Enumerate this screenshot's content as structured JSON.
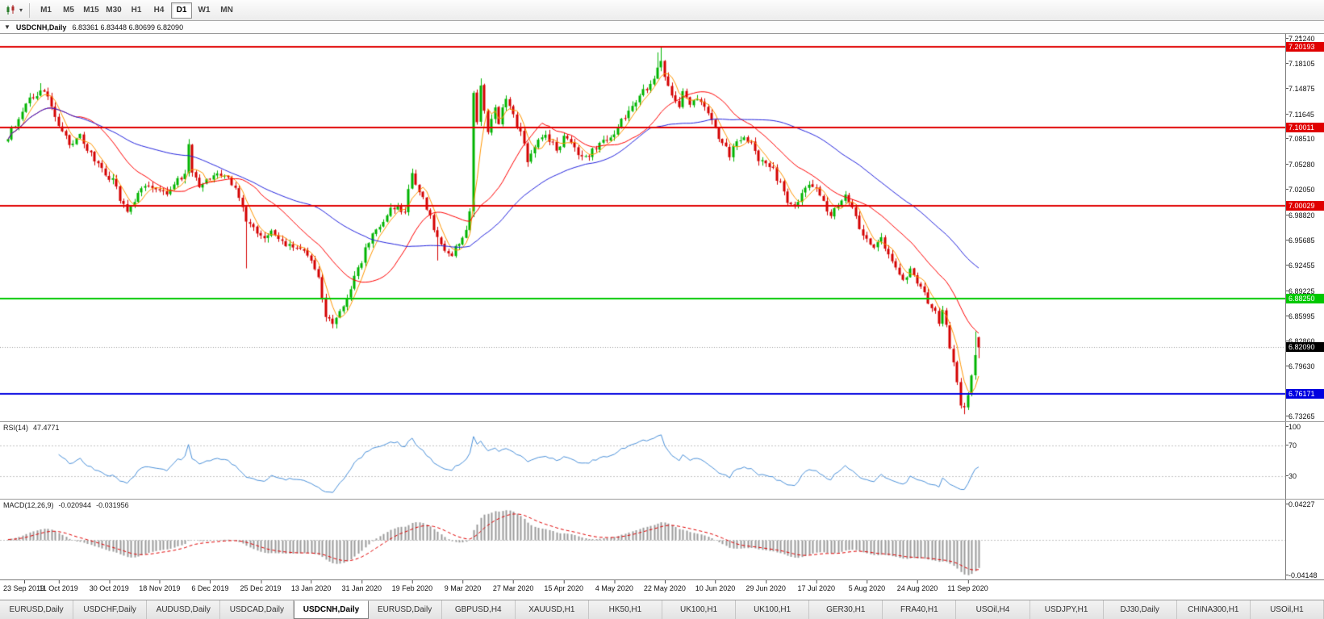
{
  "toolbar": {
    "chart_type_icon": "candlestick-chart-icon",
    "dropdown_icon": "caret-down",
    "timeframes": [
      "M1",
      "M5",
      "M15",
      "M30",
      "H1",
      "H4",
      "D1",
      "W1",
      "MN"
    ],
    "active_timeframe": "D1"
  },
  "chart_header": {
    "collapse_icon": "triangle-down",
    "symbol": "USDCNH,Daily",
    "ohlc": "6.83361 6.83448 6.80699 6.82090"
  },
  "tabs": {
    "items": [
      "EURUSD,Daily",
      "USDCHF,Daily",
      "AUDUSD,Daily",
      "USDCAD,Daily",
      "USDCNH,Daily",
      "EURUSD,Daily",
      "GBPUSD,H4",
      "XAUUSD,H1",
      "HK50,H1",
      "UK100,H1",
      "UK100,H1",
      "GER30,H1",
      "FRA40,H1",
      "USOil,H4",
      "USDJPY,H1",
      "DJ30,Daily",
      "CHINA300,H1",
      "USOil,H1"
    ],
    "active_index": 4
  },
  "chart_data": {
    "type": "candlestick",
    "title": "USDCNH,Daily",
    "ohlc_display": {
      "open": "6.83361",
      "high": "6.83448",
      "low": "6.80699",
      "close": "6.82090"
    },
    "y_axis": {
      "range": [
        6.727,
        7.2185
      ],
      "ticks": [
        "7.21240",
        "7.18105",
        "7.14875",
        "7.11645",
        "7.08510",
        "7.05280",
        "7.02050",
        "6.98820",
        "6.95685",
        "6.92455",
        "6.89225",
        "6.85995",
        "6.82860",
        "6.79630",
        "6.73265"
      ]
    },
    "x_axis": {
      "labels": [
        "23 Sep 2019",
        "11 Oct 2019",
        "30 Oct 2019",
        "18 Nov 2019",
        "6 Dec 2019",
        "25 Dec 2019",
        "13 Jan 2020",
        "31 Jan 2020",
        "19 Feb 2020",
        "9 Mar 2020",
        "27 Mar 2020",
        "15 Apr 2020",
        "4 May 2020",
        "22 May 2020",
        "10 Jun 2020",
        "29 Jun 2020",
        "17 Jul 2020",
        "5 Aug 2020",
        "24 Aug 2020",
        "11 Sep 2020"
      ],
      "label_every": 14
    },
    "levels": [
      {
        "price": 7.20193,
        "label": "7.20193",
        "color": "#e00000",
        "text": "#ffffff"
      },
      {
        "price": 7.10011,
        "label": "7.10011",
        "color": "#e00000",
        "text": "#ffffff"
      },
      {
        "price": 7.00029,
        "label": "7.00029",
        "color": "#e00000",
        "text": "#ffffff"
      },
      {
        "price": 6.8825,
        "label": "6.88250",
        "color": "#00c800",
        "text": "#ffffff"
      },
      {
        "price": 6.76171,
        "label": "6.76171",
        "color": "#0000e0",
        "text": "#ffffff"
      }
    ],
    "current_price": {
      "value": 6.8209,
      "label": "6.82090",
      "bg": "#000000",
      "text": "#ffffff"
    },
    "candles": {
      "count": 270,
      "seed": 20200921,
      "first_open": 7.082,
      "up_color": "#00b400",
      "down_color": "#d40000",
      "last_candle": {
        "open": 6.83361,
        "high": 6.83448,
        "low": 6.80699,
        "close": 6.8209
      },
      "close_anchors": [
        [
          0,
          7.088
        ],
        [
          3,
          7.112
        ],
        [
          6,
          7.134
        ],
        [
          9,
          7.148
        ],
        [
          11,
          7.139
        ],
        [
          14,
          7.104
        ],
        [
          17,
          7.076
        ],
        [
          20,
          7.089
        ],
        [
          23,
          7.064
        ],
        [
          26,
          7.049
        ],
        [
          29,
          7.031
        ],
        [
          31,
          7.011
        ],
        [
          33,
          6.991
        ],
        [
          35,
          7.006
        ],
        [
          37,
          7.027
        ],
        [
          40,
          7.021
        ],
        [
          44,
          7.019
        ],
        [
          47,
          7.031
        ],
        [
          49,
          7.039
        ],
        [
          50,
          7.075
        ],
        [
          51,
          7.041
        ],
        [
          53,
          7.027
        ],
        [
          56,
          7.035
        ],
        [
          59,
          7.041
        ],
        [
          62,
          7.029
        ],
        [
          64,
          7.011
        ],
        [
          66,
          6.979
        ],
        [
          68,
          6.969
        ],
        [
          70,
          6.961
        ],
        [
          73,
          6.965
        ],
        [
          76,
          6.955
        ],
        [
          79,
          6.947
        ],
        [
          82,
          6.939
        ],
        [
          84,
          6.931
        ],
        [
          86,
          6.906
        ],
        [
          88,
          6.862
        ],
        [
          90,
          6.851
        ],
        [
          92,
          6.866
        ],
        [
          94,
          6.886
        ],
        [
          96,
          6.908
        ],
        [
          98,
          6.931
        ],
        [
          100,
          6.956
        ],
        [
          102,
          6.971
        ],
        [
          104,
          6.984
        ],
        [
          106,
          6.997
        ],
        [
          108,
          7.001
        ],
        [
          110,
          6.988
        ],
        [
          111,
          7.018
        ],
        [
          112,
          7.04
        ],
        [
          113,
          7.031
        ],
        [
          115,
          7.007
        ],
        [
          117,
          6.984
        ],
        [
          119,
          6.961
        ],
        [
          121,
          6.947
        ],
        [
          123,
          6.939
        ],
        [
          125,
          6.951
        ],
        [
          127,
          6.973
        ],
        [
          128,
          6.992
        ],
        [
          129,
          7.146
        ],
        [
          130,
          7.104
        ],
        [
          131,
          7.151
        ],
        [
          132,
          7.117
        ],
        [
          133,
          7.091
        ],
        [
          134,
          7.109
        ],
        [
          135,
          7.127
        ],
        [
          136,
          7.107
        ],
        [
          137,
          7.121
        ],
        [
          138,
          7.137
        ],
        [
          139,
          7.124
        ],
        [
          140,
          7.117
        ],
        [
          142,
          7.091
        ],
        [
          144,
          7.059
        ],
        [
          146,
          7.077
        ],
        [
          148,
          7.091
        ],
        [
          150,
          7.084
        ],
        [
          152,
          7.071
        ],
        [
          154,
          7.089
        ],
        [
          156,
          7.079
        ],
        [
          158,
          7.064
        ],
        [
          160,
          7.059
        ],
        [
          162,
          7.071
        ],
        [
          164,
          7.081
        ],
        [
          166,
          7.087
        ],
        [
          168,
          7.093
        ],
        [
          170,
          7.107
        ],
        [
          172,
          7.121
        ],
        [
          174,
          7.134
        ],
        [
          176,
          7.145
        ],
        [
          178,
          7.157
        ],
        [
          180,
          7.174
        ],
        [
          181,
          7.181
        ],
        [
          182,
          7.161
        ],
        [
          184,
          7.137
        ],
        [
          186,
          7.127
        ],
        [
          187,
          7.144
        ],
        [
          189,
          7.127
        ],
        [
          191,
          7.137
        ],
        [
          193,
          7.124
        ],
        [
          195,
          7.107
        ],
        [
          196,
          7.097
        ],
        [
          198,
          7.079
        ],
        [
          200,
          7.065
        ],
        [
          202,
          7.079
        ],
        [
          204,
          7.091
        ],
        [
          206,
          7.077
        ],
        [
          208,
          7.061
        ],
        [
          210,
          7.055
        ],
        [
          212,
          7.045
        ],
        [
          214,
          7.027
        ],
        [
          216,
          7.007
        ],
        [
          218,
          6.999
        ],
        [
          220,
          7.014
        ],
        [
          222,
          7.027
        ],
        [
          224,
          7.019
        ],
        [
          226,
          7.004
        ],
        [
          228,
          6.991
        ],
        [
          230,
          6.999
        ],
        [
          232,
          7.011
        ],
        [
          234,
          6.997
        ],
        [
          236,
          6.974
        ],
        [
          238,
          6.959
        ],
        [
          240,
          6.947
        ],
        [
          242,
          6.957
        ],
        [
          244,
          6.939
        ],
        [
          246,
          6.924
        ],
        [
          248,
          6.909
        ],
        [
          250,
          6.917
        ],
        [
          252,
          6.904
        ],
        [
          254,
          6.889
        ],
        [
          256,
          6.871
        ],
        [
          258,
          6.855
        ],
        [
          259,
          6.869
        ],
        [
          261,
          6.821
        ],
        [
          263,
          6.774
        ],
        [
          264,
          6.751
        ],
        [
          265,
          6.743
        ],
        [
          266,
          6.761
        ],
        [
          267,
          6.787
        ],
        [
          268,
          6.813
        ],
        [
          269,
          6.8209
        ]
      ],
      "wick_overrides": [
        {
          "i": 9,
          "high": 7.156
        },
        {
          "i": 50,
          "high": 7.085
        },
        {
          "i": 66,
          "low": 6.921
        },
        {
          "i": 90,
          "low": 6.845
        },
        {
          "i": 119,
          "low": 6.931
        },
        {
          "i": 129,
          "low": 6.986
        },
        {
          "i": 131,
          "high": 7.162
        },
        {
          "i": 180,
          "high": 7.195
        },
        {
          "i": 181,
          "high": 7.2015
        },
        {
          "i": 265,
          "low": 6.736
        },
        {
          "i": 268,
          "high": 6.841
        }
      ]
    },
    "moving_averages": [
      {
        "period": 5,
        "color": "#ff9500"
      },
      {
        "period": 20,
        "color": "#ff0000"
      },
      {
        "period": 50,
        "color": "#2222dd"
      }
    ],
    "rsi": {
      "label": "RSI(14)",
      "value": "47.4771",
      "period": 14,
      "range": [
        0,
        100
      ],
      "levels": [
        70,
        30
      ],
      "ticks": [
        "100",
        "70",
        "30"
      ],
      "line_color": "#4a90d9"
    },
    "macd": {
      "label": "MACD(12,26,9)",
      "value_main": "-0.020944",
      "value_signal": "-0.031956",
      "fast": 12,
      "slow": 26,
      "signal": 9,
      "tick_top": "0.04227",
      "tick_bottom": "-0.04148",
      "hist_color": "#9a9a9a",
      "signal_color": "#e00000"
    }
  }
}
